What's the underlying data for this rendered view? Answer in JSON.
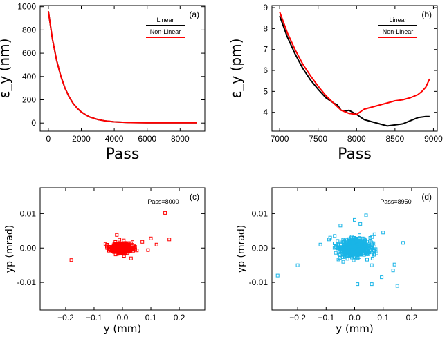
{
  "chart_data": [
    {
      "panel": "(a)",
      "type": "line",
      "xlabel": "Pass",
      "ylabel": "ε_y (nm)",
      "xlim": [
        -500,
        9500
      ],
      "ylim": [
        -70,
        1010
      ],
      "xticks": [
        0,
        2000,
        4000,
        6000,
        8000
      ],
      "yticks": [
        0,
        200,
        400,
        600,
        800,
        1000
      ],
      "legend": {
        "placement": "top-right",
        "entries": [
          "Linear",
          "Non-Linear"
        ]
      },
      "series": [
        {
          "name": "Linear",
          "color": "#000000",
          "x": [
            0,
            250,
            500,
            750,
            1000,
            1250,
            1500,
            1750,
            2000,
            2250,
            2500,
            3000,
            3500,
            4000,
            5000,
            6000,
            7000,
            8000,
            9000
          ],
          "y": [
            960,
            720,
            540,
            405,
            303,
            227,
            170,
            127,
            95,
            72,
            53,
            30,
            17,
            10,
            4,
            3,
            3,
            3,
            3
          ]
        },
        {
          "name": "Non-Linear",
          "color": "#ff0000",
          "x": [
            0,
            250,
            500,
            750,
            1000,
            1250,
            1500,
            1750,
            2000,
            2250,
            2500,
            3000,
            3500,
            4000,
            5000,
            6000,
            7000,
            8000,
            9000
          ],
          "y": [
            960,
            720,
            540,
            405,
            303,
            227,
            170,
            127,
            95,
            72,
            53,
            30,
            17,
            10,
            4,
            3,
            3,
            3,
            3
          ]
        }
      ]
    },
    {
      "panel": "(b)",
      "type": "line",
      "xlabel": "Pass",
      "ylabel": "ε_y (pm)",
      "xlim": [
        6900,
        9050
      ],
      "ylim": [
        3.1,
        9.1
      ],
      "xticks": [
        7000,
        7500,
        8000,
        8500,
        9000
      ],
      "yticks": [
        4,
        5,
        6,
        7,
        8,
        9
      ],
      "legend": {
        "placement": "top-right",
        "entries": [
          "Linear",
          "Non-Linear"
        ]
      },
      "series": [
        {
          "name": "Linear",
          "color": "#000000",
          "x": [
            7000,
            7100,
            7200,
            7300,
            7400,
            7500,
            7600,
            7700,
            7750,
            7800,
            7850,
            7900,
            8000,
            8100,
            8200,
            8300,
            8400,
            8500,
            8600,
            8700,
            8800,
            8900,
            8950
          ],
          "y": [
            8.6,
            7.6,
            6.8,
            6.1,
            5.55,
            5.1,
            4.7,
            4.45,
            4.35,
            4.1,
            4.05,
            4.1,
            3.9,
            3.65,
            3.55,
            3.45,
            3.35,
            3.4,
            3.45,
            3.6,
            3.75,
            3.8,
            3.8
          ]
        },
        {
          "name": "Non-Linear",
          "color": "#ff0000",
          "x": [
            7000,
            7100,
            7200,
            7300,
            7400,
            7500,
            7600,
            7700,
            7800,
            7900,
            8000,
            8100,
            8200,
            8300,
            8400,
            8500,
            8600,
            8700,
            8800,
            8850,
            8900,
            8950
          ],
          "y": [
            8.8,
            7.8,
            7.0,
            6.3,
            5.75,
            5.25,
            4.8,
            4.45,
            4.1,
            3.95,
            3.9,
            4.15,
            4.25,
            4.35,
            4.45,
            4.55,
            4.6,
            4.7,
            4.85,
            5.0,
            5.2,
            5.6
          ]
        }
      ]
    },
    {
      "panel": "(c)",
      "type": "scatter",
      "annotation": "Pass=8000",
      "xlabel": "y (mm)",
      "ylabel": "yp (mrad)",
      "xlim": [
        -0.29,
        0.29
      ],
      "ylim": [
        -0.018,
        0.0175
      ],
      "xticks": [
        -0.2,
        -0.1,
        0.0,
        0.1,
        0.2
      ],
      "xticklabels": [
        "−0.2",
        "−0.1",
        "0.0",
        "0.1",
        "0.2"
      ],
      "yticks": [
        -0.01,
        0.0,
        0.01
      ],
      "yticklabels": [
        "-0.01",
        "0.00",
        "0.01"
      ],
      "color": "#ff0000",
      "points": [
        [
          -0.18,
          -0.0035
        ],
        [
          0.15,
          0.0102
        ],
        [
          0.165,
          0.0025
        ],
        [
          0.1,
          0.0028
        ],
        [
          0.12,
          0.001
        ],
        [
          0.09,
          -0.0006
        ],
        [
          -0.02,
          0.0038
        ],
        [
          0.03,
          -0.003
        ],
        [
          -0.06,
          0.0012
        ],
        [
          0.07,
          0.0018
        ]
      ],
      "core": {
        "x_center": 0.0,
        "y_center": 0.0,
        "x_spread": 0.02,
        "y_spread": 0.0007,
        "count": 420
      }
    },
    {
      "panel": "(d)",
      "type": "scatter",
      "annotation": "Pass=8950",
      "xlabel": "y (mm)",
      "ylabel": "yp (mrad)",
      "xlim": [
        -0.29,
        0.29
      ],
      "ylim": [
        -0.018,
        0.0175
      ],
      "xticks": [
        -0.2,
        -0.1,
        0.0,
        0.1,
        0.2
      ],
      "xticklabels": [
        "−0.2",
        "−0.1",
        "0.0",
        "0.1",
        "0.2"
      ],
      "yticks": [
        -0.01,
        0.0,
        0.01
      ],
      "yticklabels": [
        "-0.01",
        "0.00",
        "0.01"
      ],
      "color": "#19b4e6",
      "points": [
        [
          -0.27,
          -0.008
        ],
        [
          -0.2,
          -0.005
        ],
        [
          0.15,
          -0.011
        ],
        [
          0.135,
          -0.0065
        ],
        [
          0.095,
          -0.0085
        ],
        [
          0.06,
          -0.0105
        ],
        [
          0.01,
          -0.0105
        ],
        [
          0.04,
          0.0095
        ],
        [
          0.0,
          0.0082
        ],
        [
          -0.05,
          0.0065
        ],
        [
          0.1,
          0.0045
        ],
        [
          0.17,
          0.0015
        ],
        [
          -0.12,
          0.001
        ],
        [
          0.14,
          -0.0048
        ],
        [
          -0.07,
          0.0035
        ],
        [
          0.07,
          0.004
        ],
        [
          -0.04,
          -0.004
        ],
        [
          0.06,
          -0.005
        ],
        [
          0.02,
          0.007
        ],
        [
          -0.09,
          0.0025
        ]
      ],
      "core": {
        "x_center": 0.0,
        "y_center": 0.0,
        "x_spread": 0.03,
        "y_spread": 0.0014,
        "count": 520
      }
    }
  ]
}
